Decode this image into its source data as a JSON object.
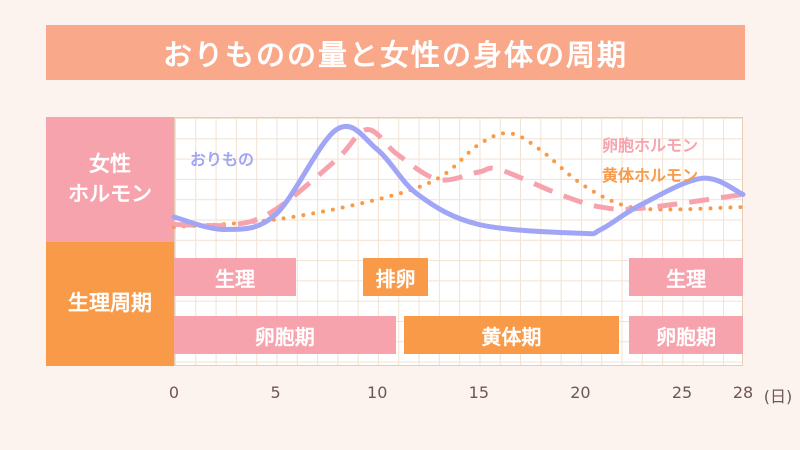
{
  "title": "おりものの量と女性の身体の周期",
  "side_labels": {
    "hormone": "女性\nホルモン",
    "cycle": "生理周期"
  },
  "colors": {
    "pink": "#f7a3ae",
    "orange": "#f99a48",
    "blue": "#a0a6f5",
    "title": "#f9a88a"
  },
  "chart_data": {
    "type": "line",
    "xlabel": "(日)",
    "xlim": [
      0,
      28
    ],
    "ylim": [
      0,
      100
    ],
    "xticks": [
      "0",
      "5",
      "10",
      "15",
      "20",
      "25",
      "28"
    ],
    "xtick_values": [
      0,
      5,
      10,
      15,
      20,
      25,
      28
    ],
    "series": [
      {
        "name": "おりもの",
        "style": "solid",
        "color": "#a0a6f5",
        "points": [
          [
            0,
            20
          ],
          [
            2.5,
            10
          ],
          [
            5,
            22
          ],
          [
            8,
            90
          ],
          [
            10,
            74
          ],
          [
            12,
            38
          ],
          [
            15,
            14
          ],
          [
            20,
            7
          ],
          [
            21,
            10
          ],
          [
            23,
            30
          ],
          [
            26,
            51
          ],
          [
            28,
            38
          ]
        ]
      },
      {
        "name": "卵胞ホルモン",
        "style": "dashed",
        "color": "#f7a3ae",
        "points": [
          [
            0,
            14
          ],
          [
            3,
            14
          ],
          [
            5,
            26
          ],
          [
            8,
            66
          ],
          [
            9.5,
            90
          ],
          [
            11,
            70
          ],
          [
            13,
            50
          ],
          [
            15,
            56
          ],
          [
            16,
            58
          ],
          [
            19,
            38
          ],
          [
            21,
            28
          ],
          [
            23,
            27
          ],
          [
            28,
            38
          ]
        ]
      },
      {
        "name": "黄体ホルモン",
        "style": "dotted",
        "color": "#f99a48",
        "points": [
          [
            0,
            12
          ],
          [
            5,
            18
          ],
          [
            10,
            34
          ],
          [
            13,
            51
          ],
          [
            15,
            78
          ],
          [
            16.5,
            87
          ],
          [
            18,
            74
          ],
          [
            20,
            47
          ],
          [
            22,
            30
          ],
          [
            24,
            26
          ],
          [
            28,
            28
          ]
        ]
      }
    ],
    "phases": [
      {
        "label": "生理",
        "row": 1,
        "start": 0,
        "end": 6,
        "color": "pink"
      },
      {
        "label": "排卵",
        "row": 1,
        "start": 9.3,
        "end": 12.5,
        "color": "orange"
      },
      {
        "label": "生理",
        "row": 1,
        "start": 22.4,
        "end": 28,
        "color": "pink"
      },
      {
        "label": "卵胞期",
        "row": 2,
        "start": 0,
        "end": 10.9,
        "color": "pink"
      },
      {
        "label": "黄体期",
        "row": 2,
        "start": 11.3,
        "end": 21.9,
        "color": "orange"
      },
      {
        "label": "卵胞期",
        "row": 2,
        "start": 22.4,
        "end": 28,
        "color": "pink"
      }
    ]
  }
}
